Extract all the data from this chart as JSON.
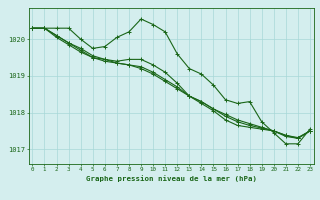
{
  "title": "Graphe pression niveau de la mer (hPa)",
  "xlabel_hours": [
    0,
    1,
    2,
    3,
    4,
    5,
    6,
    7,
    8,
    9,
    10,
    11,
    12,
    13,
    14,
    15,
    16,
    17,
    18,
    19,
    20,
    21,
    22,
    23
  ],
  "ylim": [
    1016.6,
    1020.85
  ],
  "yticks": [
    1017,
    1018,
    1019,
    1020
  ],
  "background_color": "#d4eeee",
  "grid_color": "#a8d8d8",
  "line_color": "#1a6618",
  "series": [
    [
      1020.3,
      1020.3,
      1020.3,
      1020.3,
      1020.0,
      1019.75,
      1019.8,
      1020.05,
      1020.2,
      1020.55,
      1020.4,
      1020.2,
      1019.6,
      1019.2,
      1019.05,
      1018.75,
      1018.35,
      1018.25,
      1018.3,
      1017.75,
      1017.45,
      1017.15,
      1017.15,
      1017.55
    ],
    [
      1020.3,
      1020.3,
      1020.1,
      1019.9,
      1019.75,
      1019.55,
      1019.45,
      1019.35,
      1019.3,
      1019.2,
      1019.05,
      1018.85,
      1018.65,
      1018.45,
      1018.3,
      1018.1,
      1017.95,
      1017.8,
      1017.7,
      1017.6,
      1017.5,
      1017.35,
      1017.3,
      1017.5
    ],
    [
      1020.3,
      1020.3,
      1020.1,
      1019.9,
      1019.7,
      1019.5,
      1019.4,
      1019.35,
      1019.3,
      1019.25,
      1019.1,
      1018.9,
      1018.7,
      1018.45,
      1018.3,
      1018.1,
      1017.9,
      1017.75,
      1017.65,
      1017.58,
      1017.5,
      1017.38,
      1017.32,
      1017.5
    ],
    [
      1020.3,
      1020.3,
      1020.05,
      1019.85,
      1019.65,
      1019.5,
      1019.45,
      1019.4,
      1019.45,
      1019.45,
      1019.3,
      1019.1,
      1018.8,
      1018.45,
      1018.25,
      1018.05,
      1017.8,
      1017.65,
      1017.6,
      1017.55,
      1017.5,
      1017.38,
      1017.3,
      1017.5
    ]
  ]
}
